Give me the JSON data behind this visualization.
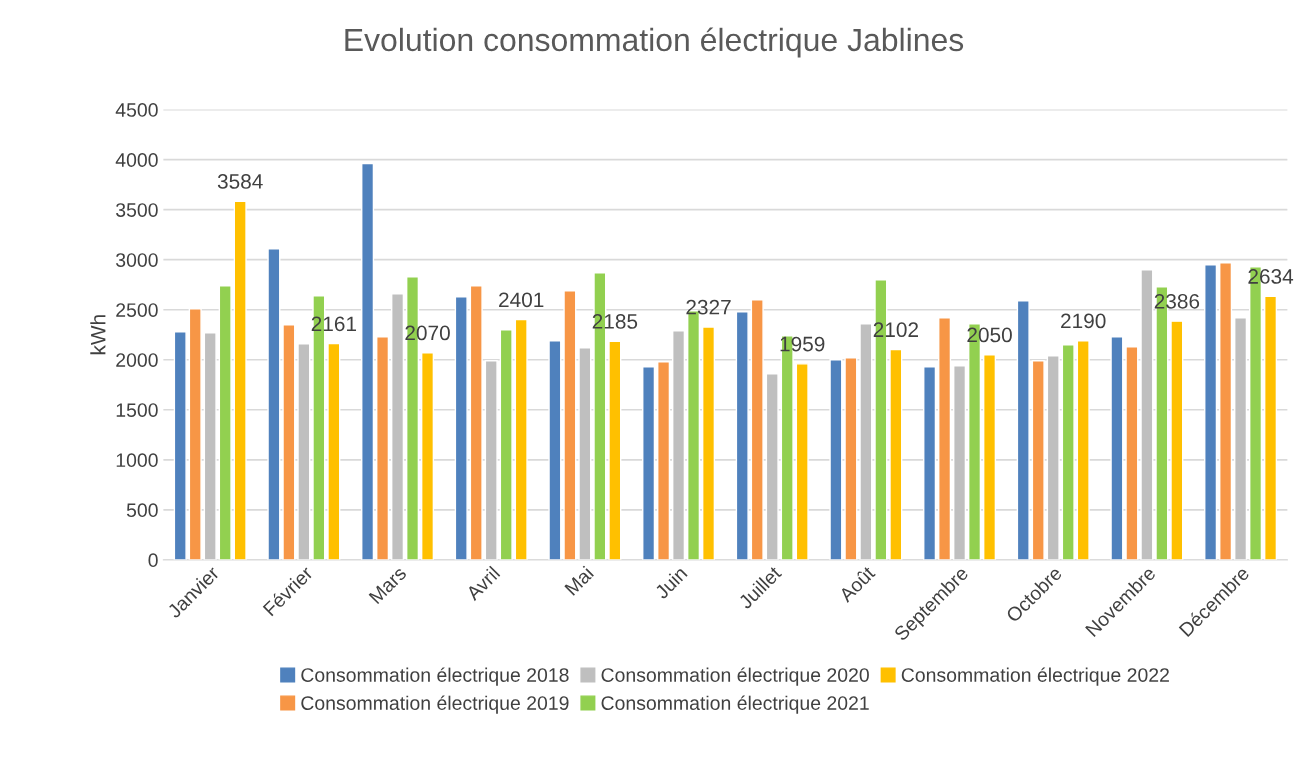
{
  "chart_data": {
    "type": "bar",
    "title": "Evolution consommation électrique Jablines",
    "ylabel": "kWh",
    "categories": [
      "Janvier",
      "Février",
      "Mars",
      "Avril",
      "Mai",
      "Juin",
      "Juillet",
      "Août",
      "Septembre",
      "Octobre",
      "Novembre",
      "Décembre"
    ],
    "series": [
      {
        "name": "Consommation électrique 2018",
        "color": "#4f81bd",
        "values": [
          2280,
          3110,
          3960,
          2630,
          2190,
          1930,
          2480,
          2000,
          1930,
          2590,
          2230,
          2950
        ]
      },
      {
        "name": "Consommation électrique 2019",
        "color": "#f79646",
        "values": [
          2510,
          2350,
          2230,
          2740,
          2690,
          1980,
          2600,
          2020,
          2420,
          1990,
          2130,
          2970
        ]
      },
      {
        "name": "Consommation électrique 2020",
        "color": "#bfbfbf",
        "values": [
          2270,
          2160,
          2660,
          1990,
          2120,
          2290,
          1860,
          2360,
          1940,
          2040,
          2900,
          2420
        ]
      },
      {
        "name": "Consommation électrique 2021",
        "color": "#92d050",
        "values": [
          2740,
          2640,
          2830,
          2300,
          2870,
          2490,
          2240,
          2800,
          2360,
          2150,
          2730,
          2930
        ]
      },
      {
        "name": "Consommation électrique 2022",
        "color": "#ffc000",
        "values": [
          3584,
          2161,
          2070,
          2401,
          2185,
          2327,
          1959,
          2102,
          2050,
          2190,
          2386,
          2634
        ],
        "value_labels": [
          "3584",
          "2161",
          "2070",
          "2401",
          "2185",
          "2327",
          "1959",
          "2102",
          "2050",
          "2190",
          "2386",
          "2634"
        ]
      }
    ],
    "ylim": [
      0,
      4500
    ],
    "yticks": [
      0,
      500,
      1000,
      1500,
      2000,
      2500,
      3000,
      3500,
      4000,
      4500
    ],
    "grid": "y",
    "legend": "bottom"
  }
}
